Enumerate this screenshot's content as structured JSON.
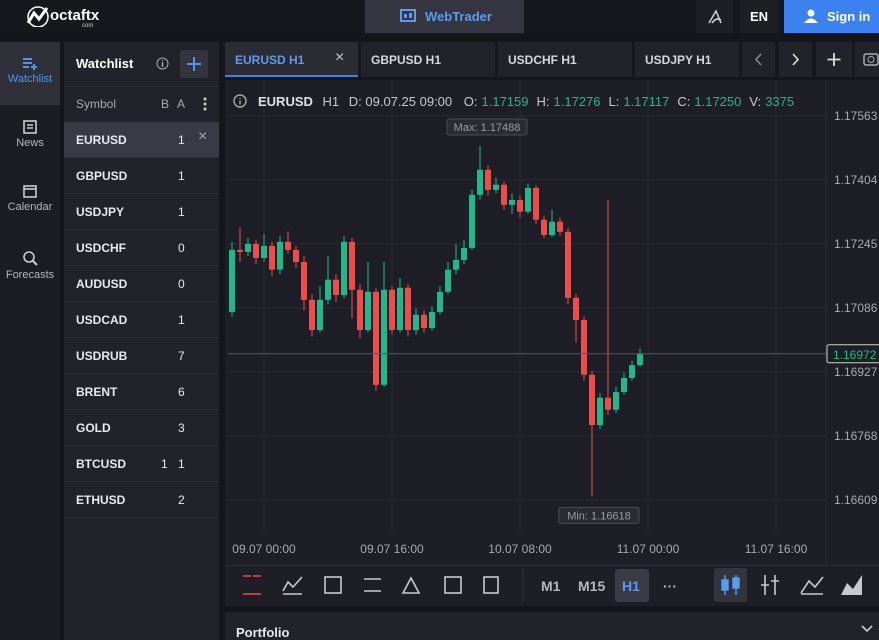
{
  "header": {
    "logo": "octaftx",
    "logo_sub": "com",
    "webtrader": "WebTrader",
    "language": "EN",
    "sign_in": "Sign in"
  },
  "sidebar": {
    "items": [
      "Watchlist",
      "News",
      "Calendar",
      "Forecasts"
    ]
  },
  "watchlist": {
    "title": "Watchlist",
    "columns": [
      "Symbol",
      "B",
      "A"
    ],
    "rows": [
      {
        "symbol": "EURUSD",
        "a": 1
      },
      {
        "symbol": "GBPUSD",
        "a": 1
      },
      {
        "symbol": "USDJPY",
        "a": 1
      },
      {
        "symbol": "USDCHF",
        "a": 0
      },
      {
        "symbol": "AUDUSD",
        "a": 0
      },
      {
        "symbol": "USDCAD",
        "a": 1
      },
      {
        "symbol": "USDRUB",
        "a": 7
      },
      {
        "symbol": "BRENT",
        "a": 6
      },
      {
        "symbol": "GOLD",
        "a": 3
      },
      {
        "symbol": "BTCUSD",
        "b": 1,
        "a": 1
      },
      {
        "symbol": "ETHUSD",
        "a": 2
      }
    ]
  },
  "tabs": [
    "EURUSD H1",
    "GBPUSD H1",
    "USDCHF H1",
    "USDJPY H1"
  ],
  "info": {
    "symbol": "EURUSD",
    "timeframe": "H1",
    "date": "D: 09.07.25 09:00",
    "fields": [
      {
        "label": "O:",
        "value": "1.17159"
      },
      {
        "label": "H:",
        "value": "1.17276"
      },
      {
        "label": "L:",
        "value": "1.17117"
      },
      {
        "label": "C:",
        "value": "1.17250"
      },
      {
        "label": "V:",
        "value": "3375"
      }
    ]
  },
  "chart_data": {
    "type": "candlestick",
    "up_color": "#1fb98d",
    "down_color": "#ef4b4b",
    "grid": true,
    "xlim": [
      -0.5,
      74.25
    ],
    "xticks": [
      {
        "value": 4,
        "label": "09.07 00:00"
      },
      {
        "value": 20,
        "label": "09.07 16:00"
      },
      {
        "value": 36,
        "label": "10.07 08:00"
      },
      {
        "value": 52,
        "label": "11.07 00:00"
      },
      {
        "value": 68,
        "label": "11.07 16:00"
      }
    ],
    "ylim": [
      1.16522,
      1.17652
    ],
    "yticks": [
      1.17563,
      1.17404,
      1.17245,
      1.17086,
      1.16927,
      1.16768,
      1.16609
    ],
    "annotations": [
      "Max: 1.17488",
      "Min: 1.16618"
    ],
    "open": [
      1.17076,
      1.1723,
      1.17225,
      1.17245,
      1.1721,
      1.1724,
      1.17181,
      1.1725,
      1.1723,
      1.172,
      1.17106,
      1.17031,
      1.17106,
      1.17156,
      1.17118,
      1.1725,
      1.17131,
      1.17031,
      1.17126,
      1.16895,
      1.17131,
      1.17031,
      1.17136,
      1.17031,
      1.17069,
      1.17036,
      1.17076,
      1.17126,
      1.17181,
      1.17205,
      1.17235,
      1.17367,
      1.17429,
      1.17379,
      1.17392,
      1.17342,
      1.17354,
      1.17325,
      1.17384,
      1.17305,
      1.17267,
      1.173,
      1.17275,
      1.17111,
      1.17056,
      1.1692,
      1.16795,
      1.16863,
      1.16833,
      1.16877,
      1.16912,
      1.16944
    ],
    "high": [
      1.1725,
      1.17285,
      1.1726,
      1.17255,
      1.1727,
      1.1725,
      1.17265,
      1.17275,
      1.1724,
      1.17215,
      1.1712,
      1.1714,
      1.17215,
      1.1717,
      1.17265,
      1.1726,
      1.17145,
      1.172,
      1.17135,
      1.172,
      1.1714,
      1.1716,
      1.17145,
      1.17085,
      1.1708,
      1.1709,
      1.1714,
      1.172,
      1.17245,
      1.17255,
      1.1738,
      1.17488,
      1.1744,
      1.1741,
      1.174,
      1.1737,
      1.17365,
      1.17395,
      1.1739,
      1.17315,
      1.1733,
      1.1731,
      1.17285,
      1.1712,
      1.17065,
      1.1693,
      1.16875,
      1.17354,
      1.1689,
      1.16925,
      1.16955,
      1.16985
    ],
    "low": [
      1.17065,
      1.172,
      1.17215,
      1.17195,
      1.172,
      1.17165,
      1.1717,
      1.1722,
      1.17185,
      1.1708,
      1.17015,
      1.17025,
      1.17095,
      1.171,
      1.1711,
      1.1706,
      1.1701,
      1.17025,
      1.1688,
      1.1689,
      1.1702,
      1.17025,
      1.17015,
      1.1702,
      1.17025,
      1.1703,
      1.1707,
      1.1712,
      1.1717,
      1.17195,
      1.1723,
      1.17355,
      1.17365,
      1.1737,
      1.1733,
      1.1732,
      1.1731,
      1.1732,
      1.17295,
      1.1726,
      1.17262,
      1.17265,
      1.17095,
      1.17,
      1.16905,
      1.16618,
      1.16785,
      1.1682,
      1.16825,
      1.1687,
      1.16905,
      1.1694
    ],
    "close": [
      1.1723,
      1.17225,
      1.17245,
      1.1721,
      1.1724,
      1.17181,
      1.1725,
      1.1723,
      1.172,
      1.17106,
      1.17031,
      1.17106,
      1.17156,
      1.17118,
      1.1725,
      1.17131,
      1.17031,
      1.17126,
      1.16895,
      1.17131,
      1.17031,
      1.17136,
      1.17031,
      1.17069,
      1.17036,
      1.17076,
      1.17126,
      1.17181,
      1.17205,
      1.17235,
      1.17367,
      1.17429,
      1.17379,
      1.17392,
      1.17342,
      1.17354,
      1.17325,
      1.17384,
      1.17305,
      1.17267,
      1.173,
      1.17275,
      1.17111,
      1.17056,
      1.1692,
      1.16795,
      1.16863,
      1.16833,
      1.16877,
      1.16912,
      1.16944,
      1.16972
    ]
  },
  "toolbar": {
    "timeframes": [
      "M1",
      "M15",
      "H1"
    ],
    "more": "···"
  },
  "portfolio": {
    "title": "Portfolio"
  }
}
